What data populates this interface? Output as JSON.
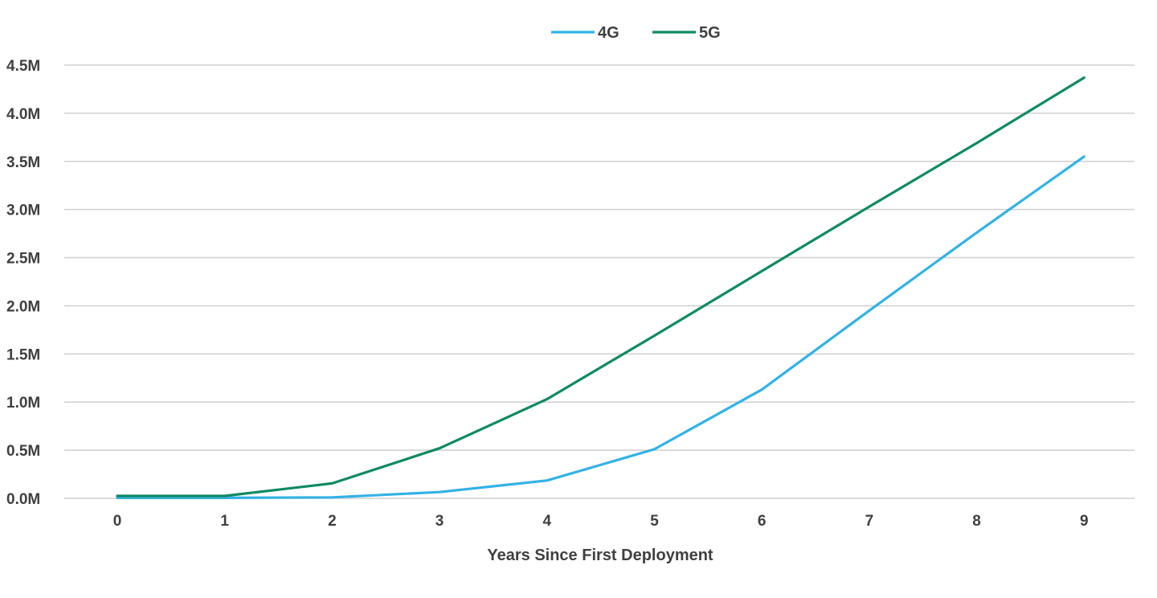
{
  "chart_data": {
    "type": "line",
    "title": "",
    "xlabel": "Years Since First Deployment",
    "ylabel": "",
    "x": [
      0,
      1,
      2,
      3,
      4,
      5,
      6,
      7,
      8,
      9
    ],
    "x_tick_labels": [
      "0",
      "1",
      "2",
      "3",
      "4",
      "5",
      "6",
      "7",
      "8",
      "9"
    ],
    "ylim": [
      0,
      4500000
    ],
    "y_ticks": [
      0,
      500000,
      1000000,
      1500000,
      2000000,
      2500000,
      3000000,
      3500000,
      4000000,
      4500000
    ],
    "y_tick_labels": [
      "0.0M",
      "0.5M",
      "1.0M",
      "1.5M",
      "2.0M",
      "2.5M",
      "3.0M",
      "3.5M",
      "4.0M",
      "4.5M"
    ],
    "grid": true,
    "legend_position": "top-center",
    "series": [
      {
        "name": "4G",
        "color": "#33b2e5",
        "values": [
          5000,
          5000,
          10000,
          65000,
          185000,
          510000,
          1130000,
          1950000,
          2760000,
          3550000
        ]
      },
      {
        "name": "5G",
        "color": "#0e8a63",
        "values": [
          25000,
          25000,
          155000,
          520000,
          1030000,
          1690000,
          2360000,
          3030000,
          3690000,
          4370000
        ]
      }
    ]
  }
}
